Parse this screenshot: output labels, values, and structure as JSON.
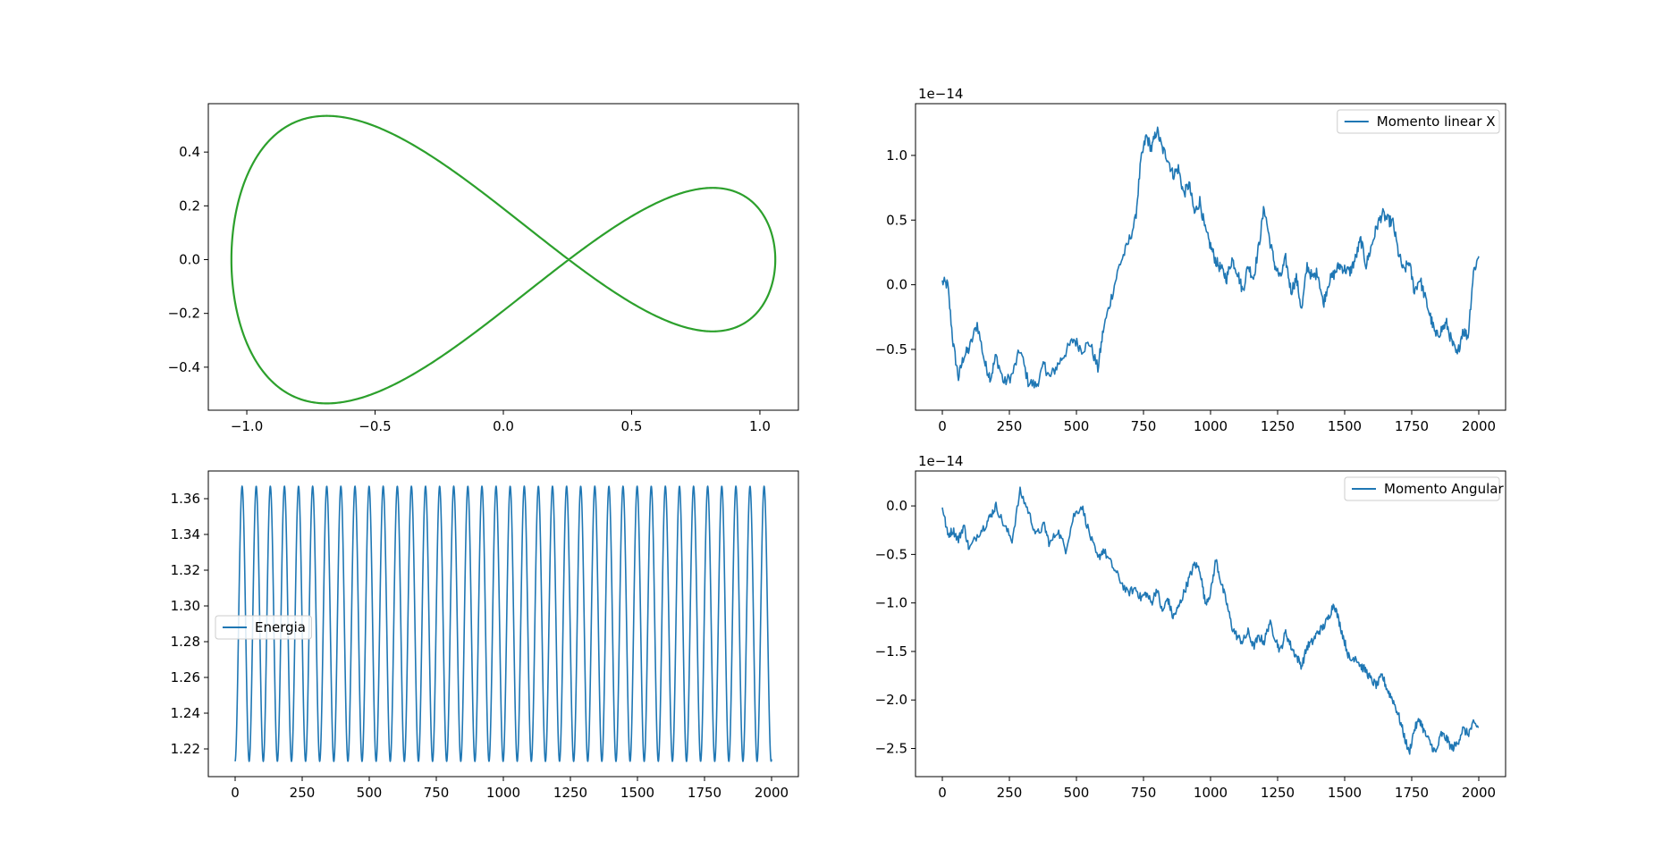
{
  "chart_data": [
    {
      "type": "line",
      "title": "",
      "xlabel": "",
      "ylabel": "",
      "xlim": [
        -1.15,
        1.15
      ],
      "ylim": [
        -0.56,
        0.58
      ],
      "xticks": [
        -1.0,
        -0.5,
        0.0,
        0.5,
        1.0
      ],
      "xtick_labels": [
        "−1.0",
        "−0.5",
        "0.0",
        "0.5",
        "1.0"
      ],
      "yticks": [
        -0.4,
        -0.2,
        0.0,
        0.2,
        0.4
      ],
      "ytick_labels": [
        "−0.4",
        "−0.2",
        "0.0",
        "0.2",
        "0.4"
      ],
      "legend": null,
      "series": [
        {
          "color": "#2ca02c",
          "curve": "figure-eight",
          "x_range": [
            -1.06,
            1.06
          ],
          "y_range": [
            -0.52,
            0.52
          ]
        }
      ]
    },
    {
      "type": "line",
      "title": "",
      "xlabel": "",
      "ylabel": "",
      "offset_text": "1e−14",
      "xlim": [
        -100,
        2100
      ],
      "ylim": [
        -0.97,
        1.4
      ],
      "xticks": [
        0,
        250,
        500,
        750,
        1000,
        1250,
        1500,
        1750,
        2000
      ],
      "xtick_labels": [
        "0",
        "250",
        "500",
        "750",
        "1000",
        "1250",
        "1500",
        "1750",
        "2000"
      ],
      "yticks": [
        -0.5,
        0.0,
        0.5,
        1.0
      ],
      "ytick_labels": [
        "−0.5",
        "0.0",
        "0.5",
        "1.0"
      ],
      "legend": "upper right",
      "series": [
        {
          "name": "Momento linear X",
          "color": "#1f77b4",
          "x": [
            0,
            20,
            40,
            60,
            80,
            100,
            130,
            160,
            180,
            200,
            230,
            260,
            290,
            320,
            350,
            380,
            400,
            430,
            460,
            490,
            520,
            550,
            580,
            600,
            630,
            660,
            690,
            720,
            740,
            760,
            780,
            800,
            820,
            840,
            860,
            880,
            900,
            920,
            940,
            960,
            980,
            1000,
            1020,
            1040,
            1060,
            1080,
            1100,
            1120,
            1140,
            1160,
            1180,
            1200,
            1220,
            1240,
            1260,
            1280,
            1300,
            1320,
            1340,
            1360,
            1380,
            1400,
            1420,
            1440,
            1460,
            1480,
            1500,
            1520,
            1540,
            1560,
            1580,
            1600,
            1620,
            1640,
            1660,
            1680,
            1700,
            1720,
            1740,
            1760,
            1780,
            1800,
            1820,
            1840,
            1860,
            1880,
            1900,
            1920,
            1940,
            1960,
            1980,
            2000
          ],
          "y": [
            0.02,
            0.0,
            -0.45,
            -0.72,
            -0.55,
            -0.5,
            -0.3,
            -0.62,
            -0.72,
            -0.55,
            -0.76,
            -0.7,
            -0.5,
            -0.75,
            -0.78,
            -0.62,
            -0.72,
            -0.62,
            -0.52,
            -0.42,
            -0.5,
            -0.45,
            -0.65,
            -0.35,
            -0.1,
            0.15,
            0.3,
            0.5,
            0.95,
            1.15,
            1.05,
            1.2,
            1.05,
            0.98,
            0.85,
            0.9,
            0.7,
            0.78,
            0.55,
            0.65,
            0.42,
            0.3,
            0.18,
            0.12,
            0.05,
            0.2,
            0.1,
            -0.05,
            0.15,
            0.05,
            0.3,
            0.6,
            0.35,
            0.15,
            0.05,
            0.2,
            -0.05,
            0.05,
            -0.2,
            0.15,
            0.05,
            0.1,
            -0.15,
            0.02,
            0.08,
            0.15,
            0.12,
            0.1,
            0.2,
            0.35,
            0.15,
            0.3,
            0.45,
            0.55,
            0.5,
            0.48,
            0.25,
            0.1,
            0.18,
            -0.05,
            0.05,
            -0.1,
            -0.25,
            -0.4,
            -0.35,
            -0.3,
            -0.45,
            -0.55,
            -0.35,
            -0.4,
            0.1,
            0.22
          ]
        }
      ]
    },
    {
      "type": "line",
      "title": "",
      "xlabel": "",
      "ylabel": "",
      "xlim": [
        -100,
        2100
      ],
      "ylim": [
        1.2045,
        1.3755
      ],
      "xticks": [
        0,
        250,
        500,
        750,
        1000,
        1250,
        1500,
        1750,
        2000
      ],
      "xtick_labels": [
        "0",
        "250",
        "500",
        "750",
        "1000",
        "1250",
        "1500",
        "1750",
        "2000"
      ],
      "yticks": [
        1.22,
        1.24,
        1.26,
        1.28,
        1.3,
        1.32,
        1.34,
        1.36
      ],
      "ytick_labels": [
        "1.22",
        "1.24",
        "1.26",
        "1.28",
        "1.30",
        "1.32",
        "1.34",
        "1.36"
      ],
      "legend": "center left",
      "series": [
        {
          "name": "Energia",
          "color": "#1f77b4",
          "y_min": 1.213,
          "y_max": 1.367,
          "period": 52.6,
          "first_peak_x": 26,
          "x_range": [
            0,
            2000
          ]
        }
      ]
    },
    {
      "type": "line",
      "title": "",
      "xlabel": "",
      "ylabel": "",
      "offset_text": "1e−14",
      "xlim": [
        -100,
        2100
      ],
      "ylim": [
        -2.79,
        0.36
      ],
      "xticks": [
        0,
        250,
        500,
        750,
        1000,
        1250,
        1500,
        1750,
        2000
      ],
      "xtick_labels": [
        "0",
        "250",
        "500",
        "750",
        "1000",
        "1250",
        "1500",
        "1750",
        "2000"
      ],
      "yticks": [
        -2.5,
        -2.0,
        -1.5,
        -1.0,
        -0.5,
        0.0
      ],
      "ytick_labels": [
        "−2.5",
        "−2.0",
        "−1.5",
        "−1.0",
        "−0.5",
        "0.0"
      ],
      "legend": "upper right",
      "series": [
        {
          "name": "Momento Angular",
          "color": "#1f77b4",
          "x": [
            0,
            20,
            40,
            60,
            80,
            100,
            130,
            160,
            180,
            200,
            230,
            260,
            290,
            320,
            350,
            380,
            400,
            430,
            460,
            490,
            520,
            550,
            580,
            600,
            630,
            660,
            690,
            720,
            740,
            760,
            780,
            800,
            820,
            840,
            860,
            880,
            900,
            920,
            940,
            960,
            980,
            1000,
            1020,
            1040,
            1060,
            1080,
            1100,
            1120,
            1140,
            1160,
            1180,
            1200,
            1220,
            1240,
            1260,
            1280,
            1300,
            1320,
            1340,
            1360,
            1380,
            1400,
            1420,
            1440,
            1460,
            1480,
            1500,
            1520,
            1540,
            1560,
            1580,
            1600,
            1620,
            1640,
            1660,
            1680,
            1700,
            1720,
            1740,
            1760,
            1780,
            1800,
            1820,
            1840,
            1860,
            1880,
            1900,
            1920,
            1940,
            1960,
            1980,
            2000
          ],
          "y": [
            0.0,
            -0.3,
            -0.25,
            -0.35,
            -0.2,
            -0.45,
            -0.3,
            -0.2,
            -0.1,
            0.0,
            -0.2,
            -0.35,
            0.15,
            -0.05,
            -0.3,
            -0.2,
            -0.4,
            -0.25,
            -0.45,
            -0.1,
            0.0,
            -0.3,
            -0.55,
            -0.45,
            -0.6,
            -0.75,
            -0.9,
            -0.85,
            -0.95,
            -0.9,
            -1.0,
            -0.85,
            -1.1,
            -0.95,
            -1.15,
            -1.05,
            -0.9,
            -0.75,
            -0.6,
            -0.65,
            -1.0,
            -0.9,
            -0.55,
            -0.8,
            -1.0,
            -1.25,
            -1.35,
            -1.4,
            -1.3,
            -1.45,
            -1.35,
            -1.4,
            -1.2,
            -1.35,
            -1.5,
            -1.3,
            -1.45,
            -1.55,
            -1.65,
            -1.45,
            -1.4,
            -1.3,
            -1.25,
            -1.15,
            -1.0,
            -1.2,
            -1.4,
            -1.6,
            -1.55,
            -1.65,
            -1.7,
            -1.8,
            -1.85,
            -1.75,
            -1.9,
            -2.0,
            -2.15,
            -2.35,
            -2.55,
            -2.3,
            -2.2,
            -2.35,
            -2.45,
            -2.55,
            -2.35,
            -2.4,
            -2.5,
            -2.45,
            -2.3,
            -2.35,
            -2.25,
            -2.28
          ]
        }
      ]
    }
  ]
}
